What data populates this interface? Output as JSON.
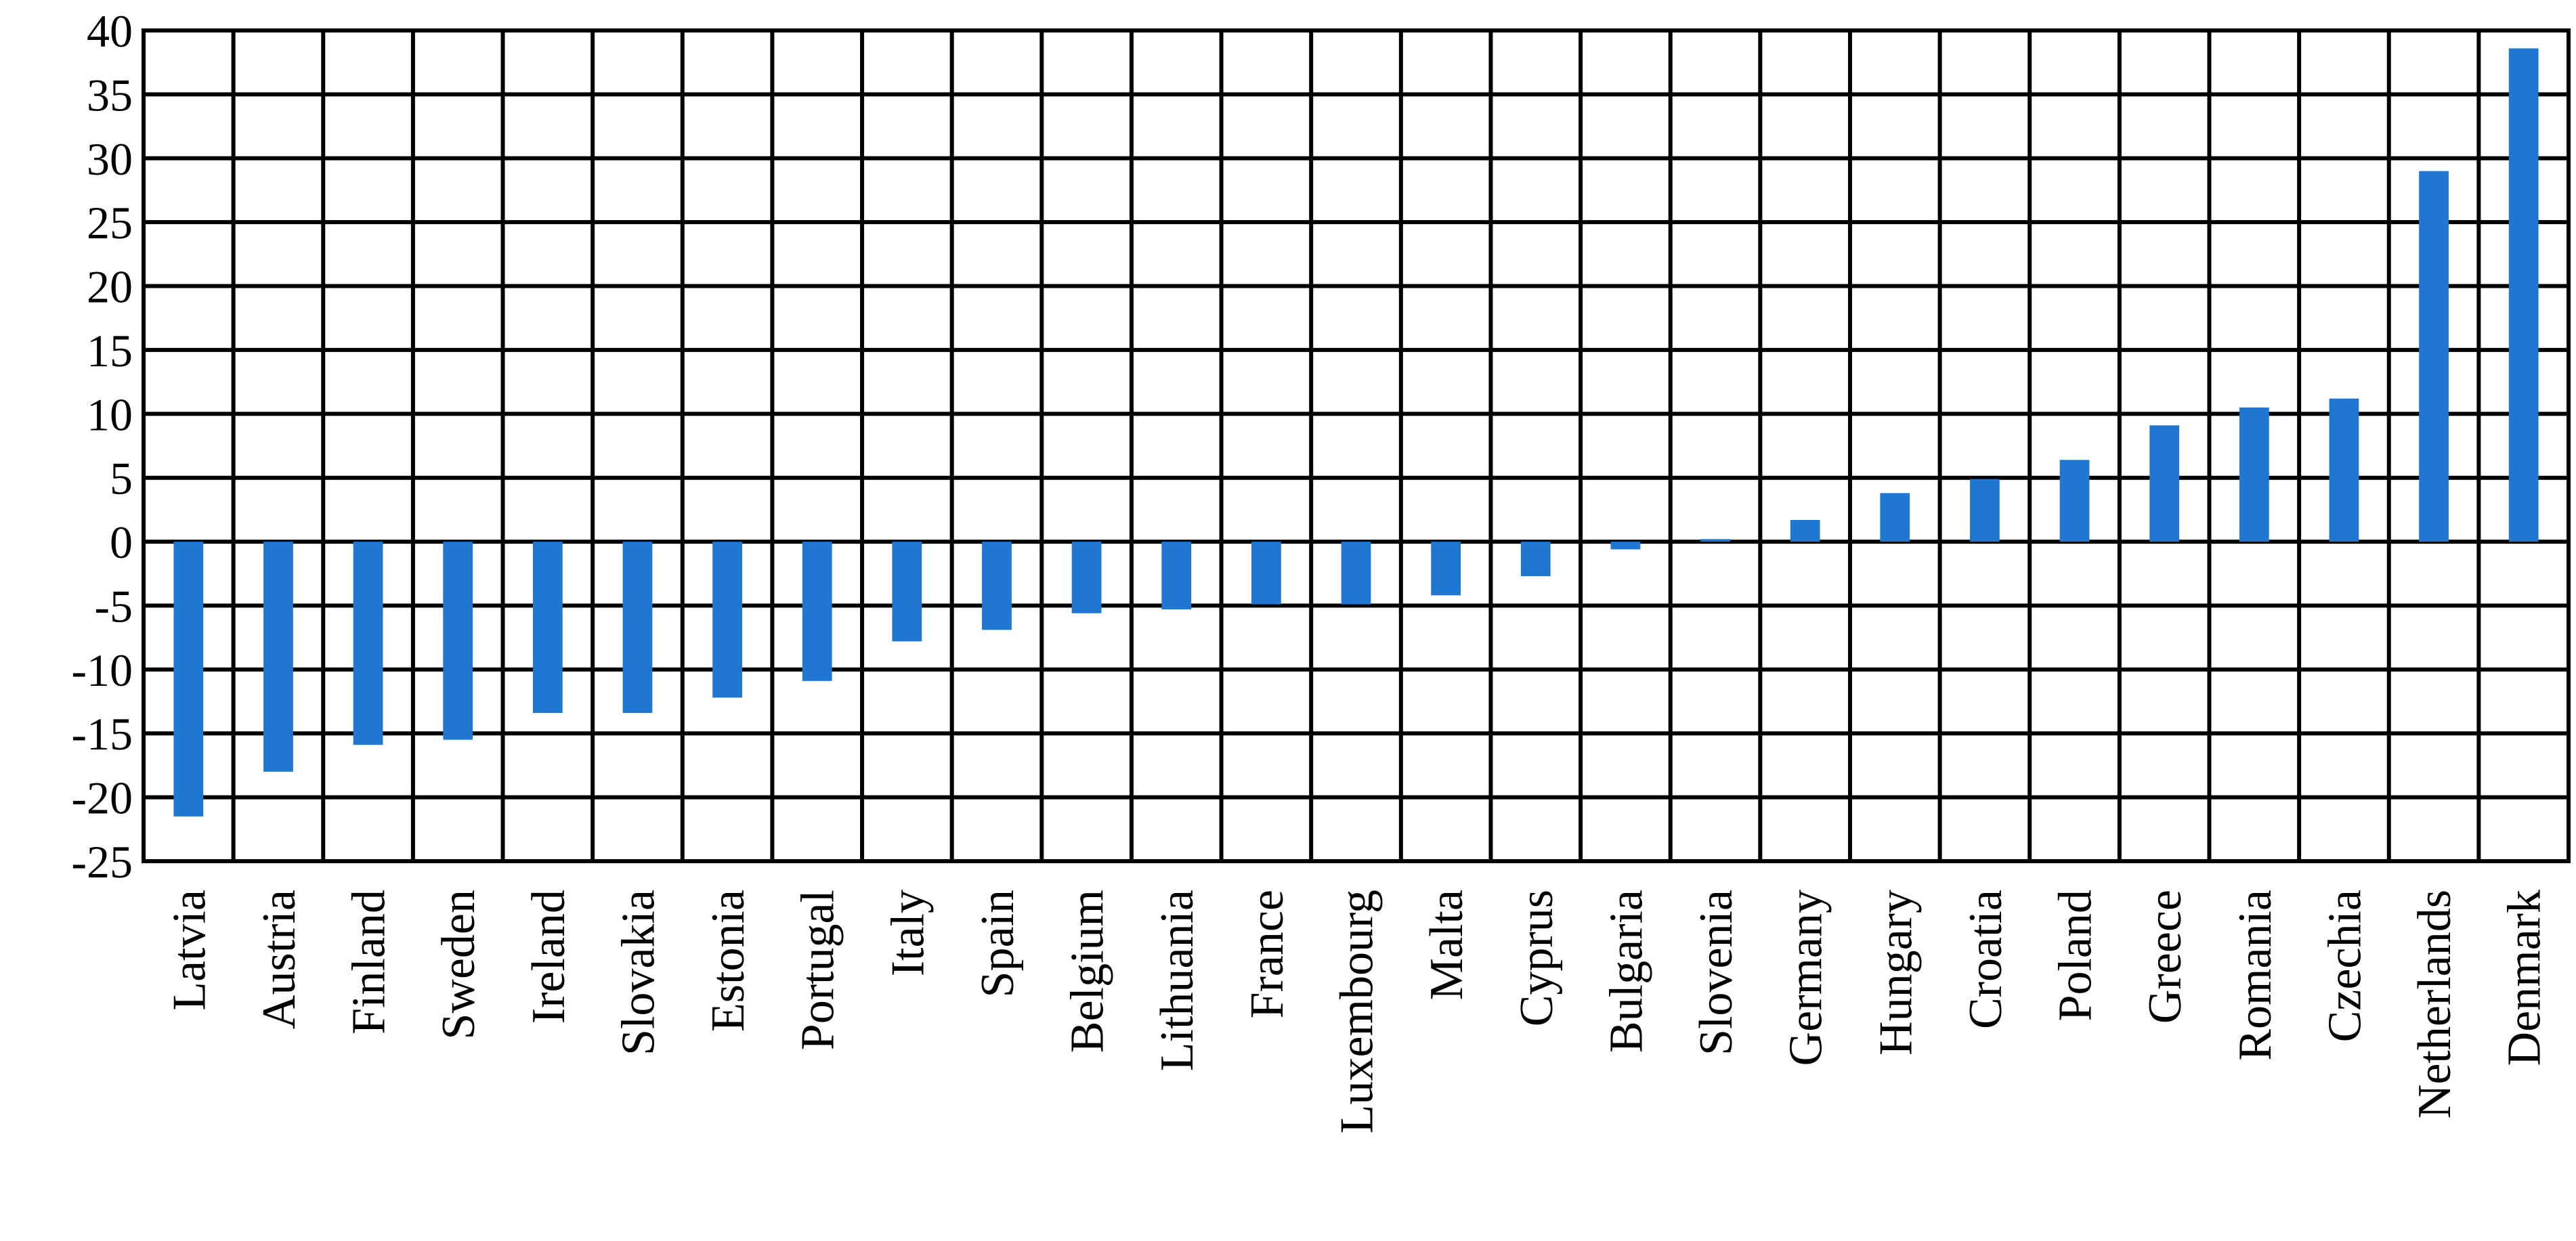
{
  "chart_data": {
    "type": "bar",
    "title": "",
    "xlabel": "",
    "ylabel": "",
    "ylim": [
      -25,
      40
    ],
    "yticks": [
      40,
      35,
      30,
      25,
      20,
      15,
      10,
      5,
      0,
      -5,
      -10,
      -15,
      -20,
      -25
    ],
    "grid": true,
    "legend": "none",
    "bar_color": "#1f77d2",
    "categories": [
      "Latvia",
      "Austria",
      "Finland",
      "Sweden",
      "Ireland",
      "Slovakia",
      "Estonia",
      "Portugal",
      "Italy",
      "Spain",
      "Belgium",
      "Lithuania",
      "France",
      "Luxembourg",
      "Malta",
      "Cyprus",
      "Bulgaria",
      "Slovenia",
      "Germany",
      "Hungary",
      "Croatia",
      "Poland",
      "Greece",
      "Romania",
      "Czechia",
      "Netherlands",
      "Denmark"
    ],
    "values": [
      -21.5,
      -18.0,
      -15.9,
      -15.5,
      -13.4,
      -13.4,
      -12.2,
      -10.9,
      -7.8,
      -6.9,
      -5.6,
      -5.3,
      -4.9,
      -4.9,
      -4.2,
      -2.7,
      -0.6,
      0.2,
      1.7,
      3.8,
      4.9,
      6.4,
      9.1,
      10.5,
      11.2,
      29.0,
      38.6
    ]
  }
}
